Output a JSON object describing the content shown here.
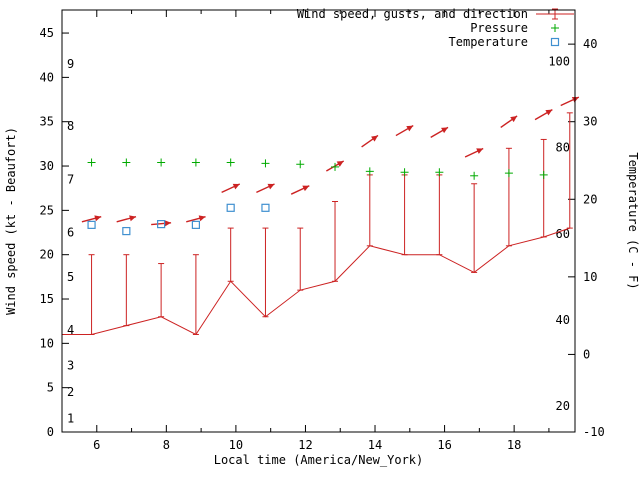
{
  "legend": {
    "wind": "Wind speed, gusts, and direction",
    "pressure": "Pressure",
    "temperature": "Temperature"
  },
  "colors": {
    "wind": "#cc2222",
    "pressure": "#00aa00",
    "temperature": "#4090d0",
    "axis": "#000000",
    "background": "#ffffff"
  },
  "chart_data": {
    "type": "line",
    "title": "",
    "grid": false,
    "legend_position": "top-right-inside",
    "x_axis": {
      "label": "Local time (America/New_York)",
      "range": [
        5,
        19.75
      ],
      "major_ticks": [
        6,
        8,
        10,
        12,
        14,
        16,
        18
      ],
      "minor_ticks": [
        7,
        9,
        11,
        13,
        15,
        17,
        19
      ]
    },
    "y_left": {
      "label": "Wind speed (kt - Beaufort)",
      "range": [
        0,
        47.6
      ],
      "ticks": [
        0,
        5,
        10,
        15,
        20,
        25,
        30,
        35,
        40,
        45
      ]
    },
    "y_right": {
      "label": "Temperature (C - F)",
      "range": [
        -10,
        44.4
      ],
      "ticks": [
        -10,
        0,
        10,
        20,
        30,
        40
      ]
    },
    "beaufort_labels": [
      {
        "label": "1",
        "kt": 1.5
      },
      {
        "label": "2",
        "kt": 4.5
      },
      {
        "label": "3",
        "kt": 7.5
      },
      {
        "label": "4",
        "kt": 11.5
      },
      {
        "label": "5",
        "kt": 17.5
      },
      {
        "label": "6",
        "kt": 22.5
      },
      {
        "label": "7",
        "kt": 28.5
      },
      {
        "label": "8",
        "kt": 34.5
      },
      {
        "label": "9",
        "kt": 41.5
      }
    ],
    "fahrenheit_labels": [
      {
        "label": "20",
        "f": 20
      },
      {
        "label": "40",
        "f": 40
      },
      {
        "label": "60",
        "f": 60
      },
      {
        "label": "80",
        "f": 80
      },
      {
        "label": "100",
        "f": 100
      }
    ],
    "series": {
      "wind": {
        "name": "Wind speed, gusts, and direction",
        "color": "#cc2222",
        "style": "errorbars-with-direction-arrows",
        "points": [
          {
            "h": 5.0,
            "speed": 11
          },
          {
            "h": 5.85,
            "speed": 11,
            "gust": 20,
            "arrow_kt": 24,
            "arrow_deg": 15
          },
          {
            "h": 6.85,
            "speed": 12,
            "gust": 20,
            "arrow_kt": 24,
            "arrow_deg": 15
          },
          {
            "h": 7.85,
            "speed": 13,
            "gust": 19,
            "arrow_kt": 23.5,
            "arrow_deg": 5
          },
          {
            "h": 8.85,
            "speed": 11,
            "gust": 20,
            "arrow_kt": 24,
            "arrow_deg": 15
          },
          {
            "h": 9.85,
            "speed": 17,
            "gust": 23,
            "arrow_kt": 27.5,
            "arrow_deg": 25
          },
          {
            "h": 10.85,
            "speed": 13,
            "gust": 23,
            "arrow_kt": 27.5,
            "arrow_deg": 25
          },
          {
            "h": 11.85,
            "speed": 16,
            "gust": 23,
            "arrow_kt": 27.3,
            "arrow_deg": 25
          },
          {
            "h": 12.85,
            "speed": 17,
            "gust": 26,
            "arrow_kt": 30,
            "arrow_deg": 30
          },
          {
            "h": 13.85,
            "speed": 21,
            "gust": 29,
            "arrow_kt": 32.8,
            "arrow_deg": 35
          },
          {
            "h": 14.85,
            "speed": 20,
            "gust": 29,
            "arrow_kt": 34,
            "arrow_deg": 30
          },
          {
            "h": 15.85,
            "speed": 20,
            "gust": 29,
            "arrow_kt": 33.8,
            "arrow_deg": 30
          },
          {
            "h": 16.85,
            "speed": 18,
            "gust": 28,
            "arrow_kt": 31.5,
            "arrow_deg": 25
          },
          {
            "h": 17.85,
            "speed": 21,
            "gust": 32,
            "arrow_kt": 35,
            "arrow_deg": 35
          },
          {
            "h": 18.85,
            "speed": 22,
            "gust": 33,
            "arrow_kt": 35.8,
            "arrow_deg": 30
          },
          {
            "h": 19.6,
            "speed": 23,
            "gust": 36,
            "arrow_kt": 37.3,
            "arrow_deg": 25
          }
        ]
      },
      "pressure": {
        "name": "Pressure",
        "color": "#00aa00",
        "marker": "plus",
        "points": [
          {
            "h": 5.85,
            "value": 30.4
          },
          {
            "h": 6.85,
            "value": 30.4
          },
          {
            "h": 7.85,
            "value": 30.4
          },
          {
            "h": 8.85,
            "value": 30.4
          },
          {
            "h": 9.85,
            "value": 30.4
          },
          {
            "h": 10.85,
            "value": 30.3
          },
          {
            "h": 11.85,
            "value": 30.2
          },
          {
            "h": 12.85,
            "value": 29.9
          },
          {
            "h": 13.85,
            "value": 29.4
          },
          {
            "h": 14.85,
            "value": 29.3
          },
          {
            "h": 15.85,
            "value": 29.3
          },
          {
            "h": 16.85,
            "value": 28.9
          },
          {
            "h": 17.85,
            "value": 29.2
          },
          {
            "h": 18.85,
            "value": 29.0
          }
        ]
      },
      "temperature": {
        "name": "Temperature",
        "color": "#4090d0",
        "marker": "open-square",
        "points": [
          {
            "h": 5.85,
            "c": 16.7
          },
          {
            "h": 6.85,
            "c": 15.9
          },
          {
            "h": 7.85,
            "c": 16.8
          },
          {
            "h": 8.85,
            "c": 16.7
          },
          {
            "h": 9.85,
            "c": 18.9
          },
          {
            "h": 10.85,
            "c": 18.9
          }
        ]
      }
    }
  }
}
